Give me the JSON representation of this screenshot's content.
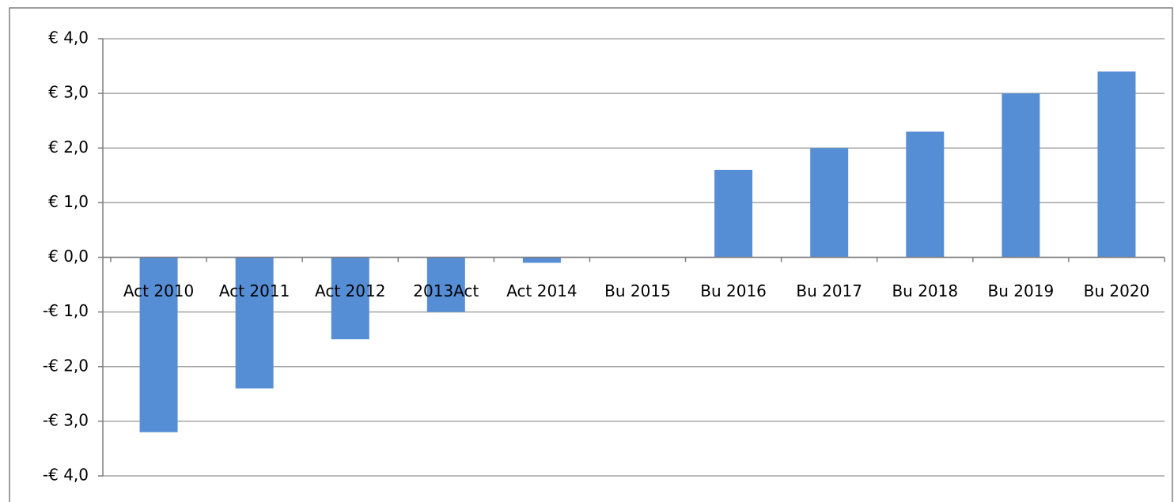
{
  "chart_data": {
    "type": "bar",
    "categories": [
      "Act 2010",
      "Act 2011",
      "Act 2012",
      "2013Act",
      "Act 2014",
      "Bu 2015",
      "Bu 2016",
      "Bu 2017",
      "Bu 2018",
      "Bu 2019",
      "Bu 2020"
    ],
    "values": [
      -3.2,
      -2.4,
      -1.5,
      -1.0,
      -0.1,
      0,
      1.6,
      2.0,
      2.3,
      3.0,
      3.4
    ],
    "color": "#558ed5",
    "ylim": [
      -4,
      4
    ],
    "yticks": [
      {
        "value": -4,
        "label": "-€ 4,0"
      },
      {
        "value": -3,
        "label": "-€ 3,0"
      },
      {
        "value": -2,
        "label": "-€ 2,0"
      },
      {
        "value": -1,
        "label": "-€ 1,0"
      },
      {
        "value": 0,
        "label": "€ 0,0"
      },
      {
        "value": 1,
        "label": "€ 1,0"
      },
      {
        "value": 2,
        "label": "€ 2,0"
      },
      {
        "value": 3,
        "label": "€ 3,0"
      },
      {
        "value": 4,
        "label": "€ 4,0"
      }
    ],
    "grid": true
  }
}
